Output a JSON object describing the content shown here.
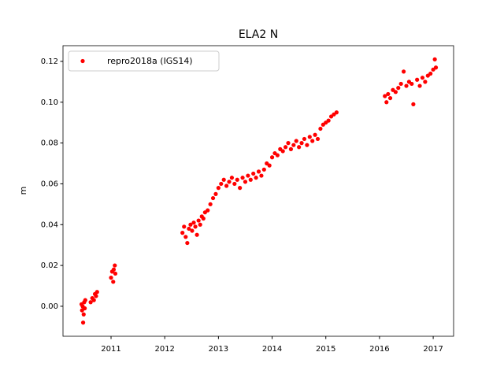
{
  "chart_data": {
    "type": "scatter",
    "title": "ELA2 N",
    "y_label": "m",
    "x": [
      2010.45,
      2010.46,
      2010.47,
      2010.48,
      2010.49,
      2010.5,
      2010.51,
      2010.52,
      2010.62,
      2010.65,
      2010.68,
      2010.7,
      2010.72,
      2010.74,
      2011.0,
      2011.02,
      2011.04,
      2011.05,
      2011.07,
      2011.08,
      2012.33,
      2012.36,
      2012.39,
      2012.42,
      2012.45,
      2012.48,
      2012.51,
      2012.54,
      2012.57,
      2012.6,
      2012.63,
      2012.66,
      2012.69,
      2012.72,
      2012.75,
      2012.8,
      2012.85,
      2012.9,
      2012.95,
      2013.0,
      2013.05,
      2013.1,
      2013.15,
      2013.2,
      2013.25,
      2013.3,
      2013.35,
      2013.4,
      2013.45,
      2013.5,
      2013.55,
      2013.6,
      2013.65,
      2013.7,
      2013.75,
      2013.8,
      2013.85,
      2013.9,
      2013.95,
      2014.0,
      2014.05,
      2014.1,
      2014.15,
      2014.2,
      2014.25,
      2014.3,
      2014.35,
      2014.4,
      2014.45,
      2014.5,
      2014.55,
      2014.6,
      2014.65,
      2014.7,
      2014.75,
      2014.8,
      2014.85,
      2014.9,
      2014.95,
      2015.0,
      2015.05,
      2015.1,
      2015.15,
      2015.2,
      2016.1,
      2016.13,
      2016.16,
      2016.2,
      2016.25,
      2016.3,
      2016.35,
      2016.4,
      2016.45,
      2016.5,
      2016.55,
      2016.6,
      2016.63,
      2016.7,
      2016.75,
      2016.8,
      2016.85,
      2016.9,
      2016.95,
      2017.0,
      2017.03,
      2017.05
    ],
    "series": [
      {
        "name": "repro2018a (IGS14)",
        "color": "#ff0000",
        "values": [
          0.001,
          -0.002,
          0.0,
          -0.008,
          -0.004,
          0.002,
          -0.001,
          0.003,
          0.002,
          0.004,
          0.003,
          0.006,
          0.005,
          0.007,
          0.014,
          0.017,
          0.012,
          0.018,
          0.02,
          0.016,
          0.036,
          0.039,
          0.034,
          0.031,
          0.038,
          0.04,
          0.037,
          0.041,
          0.039,
          0.035,
          0.042,
          0.04,
          0.044,
          0.043,
          0.046,
          0.047,
          0.05,
          0.053,
          0.055,
          0.058,
          0.06,
          0.062,
          0.059,
          0.061,
          0.063,
          0.06,
          0.062,
          0.058,
          0.063,
          0.061,
          0.064,
          0.062,
          0.065,
          0.063,
          0.066,
          0.064,
          0.067,
          0.07,
          0.069,
          0.073,
          0.075,
          0.074,
          0.077,
          0.076,
          0.078,
          0.08,
          0.077,
          0.079,
          0.081,
          0.078,
          0.08,
          0.082,
          0.079,
          0.083,
          0.081,
          0.084,
          0.082,
          0.087,
          0.089,
          0.09,
          0.091,
          0.093,
          0.094,
          0.095,
          0.103,
          0.1,
          0.104,
          0.102,
          0.106,
          0.105,
          0.107,
          0.109,
          0.115,
          0.108,
          0.11,
          0.109,
          0.099,
          0.111,
          0.108,
          0.112,
          0.11,
          0.113,
          0.114,
          0.116,
          0.121,
          0.117
        ]
      }
    ],
    "xlim": [
      2010.105,
      2017.38
    ],
    "xticks": [
      2011,
      2012,
      2013,
      2014,
      2015,
      2016,
      2017
    ],
    "ylim": [
      -0.0147,
      0.1277
    ],
    "yticks": [
      {
        "value": 0,
        "label": "0.00"
      },
      0.02,
      0.04,
      0.06,
      0.08,
      {
        "value": 0.1,
        "label": "0.10"
      },
      0.12
    ],
    "legend": "upper left",
    "grid": false
  }
}
